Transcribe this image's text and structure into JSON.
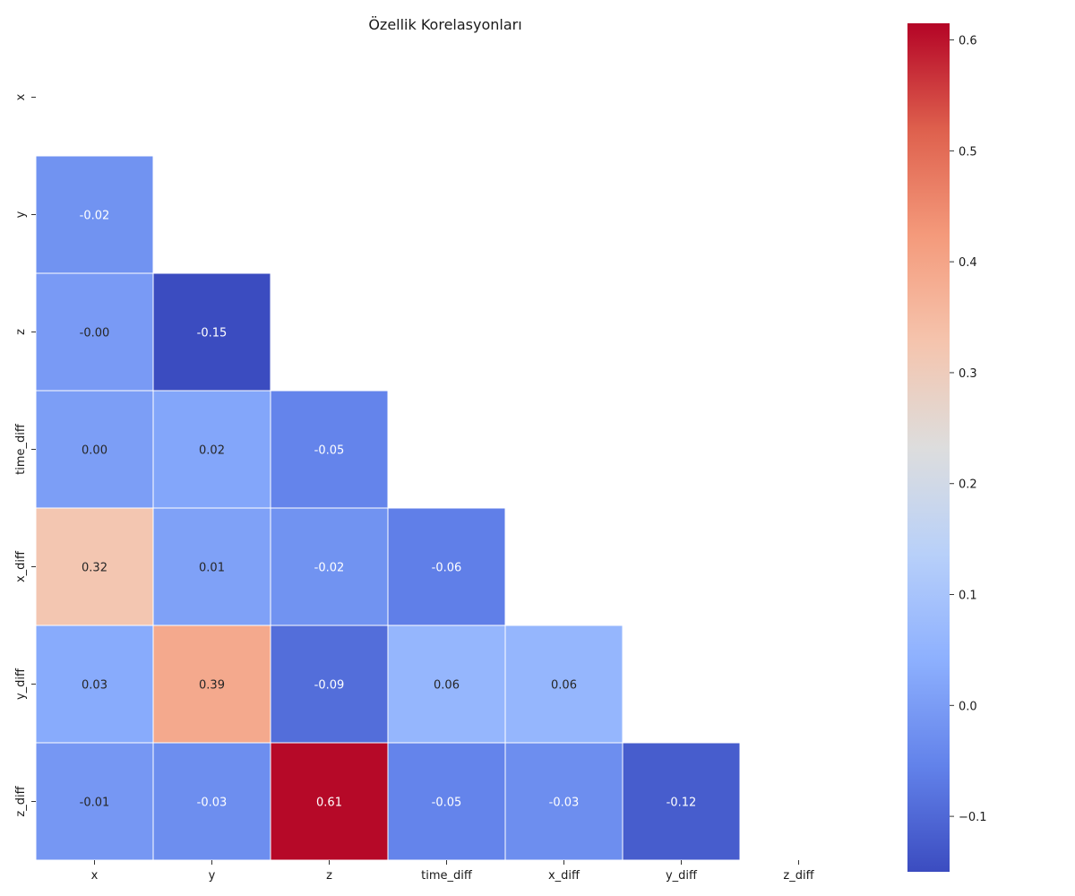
{
  "chart_data": {
    "type": "heatmap",
    "title": "Özellik Korelasyonları",
    "xlabel": "",
    "ylabel": "",
    "mask": "upper-triangle-including-diagonal",
    "x_labels": [
      "x",
      "y",
      "z",
      "time_diff",
      "x_diff",
      "y_diff",
      "z_diff"
    ],
    "y_labels": [
      "x",
      "y",
      "z",
      "time_diff",
      "x_diff",
      "y_diff",
      "z_diff"
    ],
    "cells": [
      {
        "row": 1,
        "col": 0,
        "value": -0.02,
        "label": "-0.02"
      },
      {
        "row": 2,
        "col": 0,
        "value": -0.004,
        "label": "-0.00"
      },
      {
        "row": 2,
        "col": 1,
        "value": -0.15,
        "label": "-0.15"
      },
      {
        "row": 3,
        "col": 0,
        "value": 0.004,
        "label": "0.00"
      },
      {
        "row": 3,
        "col": 1,
        "value": 0.02,
        "label": "0.02"
      },
      {
        "row": 3,
        "col": 2,
        "value": -0.05,
        "label": "-0.05"
      },
      {
        "row": 4,
        "col": 0,
        "value": 0.32,
        "label": "0.32"
      },
      {
        "row": 4,
        "col": 1,
        "value": 0.01,
        "label": "0.01"
      },
      {
        "row": 4,
        "col": 2,
        "value": -0.02,
        "label": "-0.02"
      },
      {
        "row": 4,
        "col": 3,
        "value": -0.06,
        "label": "-0.06"
      },
      {
        "row": 5,
        "col": 0,
        "value": 0.03,
        "label": "0.03"
      },
      {
        "row": 5,
        "col": 1,
        "value": 0.39,
        "label": "0.39"
      },
      {
        "row": 5,
        "col": 2,
        "value": -0.09,
        "label": "-0.09"
      },
      {
        "row": 5,
        "col": 3,
        "value": 0.06,
        "label": "0.06"
      },
      {
        "row": 5,
        "col": 4,
        "value": 0.06,
        "label": "0.06"
      },
      {
        "row": 6,
        "col": 0,
        "value": -0.01,
        "label": "-0.01"
      },
      {
        "row": 6,
        "col": 1,
        "value": -0.03,
        "label": "-0.03"
      },
      {
        "row": 6,
        "col": 2,
        "value": 0.61,
        "label": "0.61"
      },
      {
        "row": 6,
        "col": 3,
        "value": -0.05,
        "label": "-0.05"
      },
      {
        "row": 6,
        "col": 4,
        "value": -0.03,
        "label": "-0.03"
      },
      {
        "row": 6,
        "col": 5,
        "value": -0.12,
        "label": "-0.12"
      }
    ],
    "colormap": "coolwarm",
    "vmin": -0.15,
    "vmax": 0.615,
    "colorbar_ticks": [
      -0.1,
      0.0,
      0.1,
      0.2,
      0.3,
      0.4,
      0.5,
      0.6
    ],
    "colorbar_tick_labels": [
      "−0.1",
      "0.0",
      "0.1",
      "0.2",
      "0.3",
      "0.4",
      "0.5",
      "0.6"
    ],
    "grid": false,
    "legend": "colorbar-right"
  }
}
